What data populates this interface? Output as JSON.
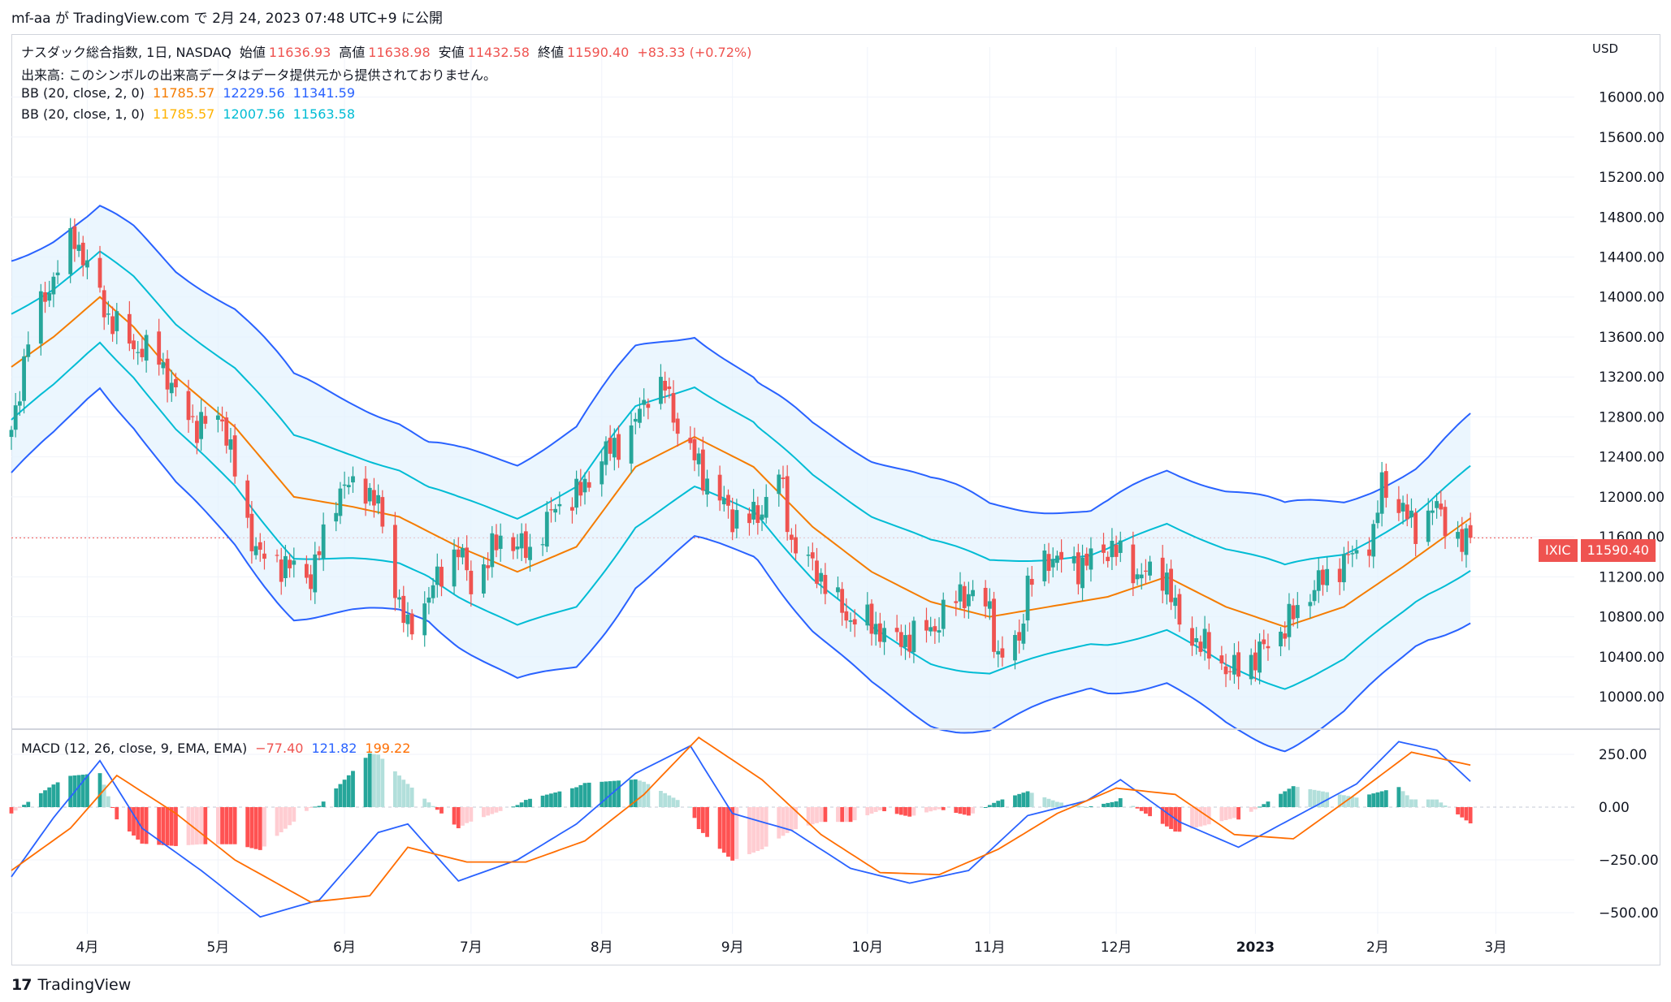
{
  "header": {
    "publish_text": "mf-aa が TradingView.com で 2月 24, 2023 07:48 UTC+9 に公開"
  },
  "legend": {
    "symbol_line": {
      "name": "ナスダック総合指数, 1日, NASDAQ",
      "open_label": "始値",
      "open": "11636.93",
      "high_label": "高値",
      "high": "11638.98",
      "low_label": "安値",
      "low": "11432.58",
      "close_label": "終値",
      "close": "11590.40",
      "change": "+83.33 (+0.72%)"
    },
    "volume_line": "出来高: このシンボルの出来高データはデータ提供元から提供されておりません。",
    "bb1": {
      "label": "BB (20, close, 2, 0)",
      "basis": "11785.57",
      "upper": "12229.56",
      "lower": "11341.59"
    },
    "bb2": {
      "label": "BB (20, close, 1, 0)",
      "basis": "11785.57",
      "upper": "12007.56",
      "lower": "11563.58"
    },
    "macd": {
      "label": "MACD (12, 26, close, 9, EMA, EMA)",
      "hist": "−77.40",
      "macd": "121.82",
      "signal": "199.22"
    }
  },
  "currency": "USD",
  "price_tag": {
    "symbol": "IXIC",
    "value": "11590.40"
  },
  "colors": {
    "up": "#26a69a",
    "down": "#ef5350",
    "bb_outer": "#2962ff",
    "bb_inner": "#00bcd4",
    "basis": "#f57c00",
    "basis_inner": "#ffb300",
    "band_fill": "#e3f2fd",
    "macd_line": "#2962ff",
    "signal_line": "#ff6d00",
    "hist_up_strong": "#26a69a",
    "hist_up_weak": "#b2dfdb",
    "hist_down_strong": "#ff5252",
    "hist_down_weak": "#ffcdd2"
  },
  "footer": {
    "brand": "TradingView"
  },
  "chart_data": [
    {
      "type": "candlestick",
      "title": "ナスダック総合指数, 1日, NASDAQ",
      "ylim": [
        9700,
        16500
      ],
      "y_ticks": [
        10000,
        10400,
        10800,
        11200,
        11600,
        12000,
        12400,
        12800,
        13200,
        13600,
        14000,
        14400,
        14800,
        15200,
        15600,
        16000
      ],
      "y_tick_labels": [
        "10000.00",
        "10400.00",
        "10800.00",
        "11200.00",
        "11600.00",
        "12000.00",
        "12400.00",
        "12800.00",
        "13200.00",
        "13600.00",
        "14000.00",
        "14400.00",
        "14800.00",
        "15200.00",
        "15600.00",
        "16000.00"
      ],
      "x_ticks": [
        "4月",
        "5月",
        "6月",
        "7月",
        "8月",
        "9月",
        "10月",
        "11月",
        "12月",
        "2023",
        "2月",
        "3月"
      ],
      "close_path": [
        [
          "2022-03-14",
          12600
        ],
        [
          "2022-03-18",
          13600
        ],
        [
          "2022-03-24",
          14200
        ],
        [
          "2022-03-29",
          14600
        ],
        [
          "2022-04-01",
          14300
        ],
        [
          "2022-04-06",
          13800
        ],
        [
          "2022-04-12",
          13500
        ],
        [
          "2022-04-18",
          13400
        ],
        [
          "2022-04-22",
          13000
        ],
        [
          "2022-04-27",
          12700
        ],
        [
          "2022-05-03",
          12800
        ],
        [
          "2022-05-09",
          11700
        ],
        [
          "2022-05-12",
          11400
        ],
        [
          "2022-05-19",
          11300
        ],
        [
          "2022-05-24",
          11200
        ],
        [
          "2022-05-31",
          12100
        ],
        [
          "2022-06-06",
          12100
        ],
        [
          "2022-06-09",
          11900
        ],
        [
          "2022-06-13",
          11100
        ],
        [
          "2022-06-16",
          10650
        ],
        [
          "2022-06-22",
          11100
        ],
        [
          "2022-06-28",
          11500
        ],
        [
          "2022-07-01",
          11100
        ],
        [
          "2022-07-08",
          11600
        ],
        [
          "2022-07-15",
          11450
        ],
        [
          "2022-07-21",
          11900
        ],
        [
          "2022-07-27",
          12050
        ],
        [
          "2022-08-01",
          12400
        ],
        [
          "2022-08-08",
          12650
        ],
        [
          "2022-08-12",
          13050
        ],
        [
          "2022-08-16",
          13100
        ],
        [
          "2022-08-19",
          12700
        ],
        [
          "2022-08-26",
          12150
        ],
        [
          "2022-09-01",
          11800
        ],
        [
          "2022-09-07",
          11800
        ],
        [
          "2022-09-12",
          12250
        ],
        [
          "2022-09-15",
          11550
        ],
        [
          "2022-09-22",
          11200
        ],
        [
          "2022-09-28",
          10800
        ],
        [
          "2022-10-03",
          10750
        ],
        [
          "2022-10-10",
          10550
        ],
        [
          "2022-10-13",
          10600
        ],
        [
          "2022-10-19",
          10700
        ],
        [
          "2022-10-25",
          11050
        ],
        [
          "2022-11-01",
          10900
        ],
        [
          "2022-11-03",
          10350
        ],
        [
          "2022-11-08",
          10600
        ],
        [
          "2022-11-10",
          11100
        ],
        [
          "2022-11-15",
          11400
        ],
        [
          "2022-11-22",
          11300
        ],
        [
          "2022-11-30",
          11500
        ],
        [
          "2022-12-05",
          11250
        ],
        [
          "2022-12-13",
          11200
        ],
        [
          "2022-12-16",
          10700
        ],
        [
          "2022-12-22",
          10500
        ],
        [
          "2022-12-28",
          10250
        ],
        [
          "2023-01-03",
          10400
        ],
        [
          "2023-01-09",
          10650
        ],
        [
          "2023-01-17",
          11100
        ],
        [
          "2023-01-24",
          11350
        ],
        [
          "2023-01-31",
          11600
        ],
        [
          "2023-02-02",
          12150
        ],
        [
          "2023-02-06",
          11900
        ],
        [
          "2023-02-10",
          11700
        ],
        [
          "2023-02-15",
          11900
        ],
        [
          "2023-02-21",
          11500
        ],
        [
          "2023-02-23",
          11590
        ]
      ],
      "bb_basis_path": [
        [
          "2022-03-14",
          13300
        ],
        [
          "2022-03-24",
          13600
        ],
        [
          "2022-04-04",
          14000
        ],
        [
          "2022-04-12",
          13700
        ],
        [
          "2022-04-22",
          13200
        ],
        [
          "2022-05-06",
          12700
        ],
        [
          "2022-05-20",
          12000
        ],
        [
          "2022-06-03",
          11900
        ],
        [
          "2022-06-14",
          11800
        ],
        [
          "2022-06-28",
          11500
        ],
        [
          "2022-07-12",
          11250
        ],
        [
          "2022-07-26",
          11500
        ],
        [
          "2022-08-09",
          12300
        ],
        [
          "2022-08-23",
          12600
        ],
        [
          "2022-09-06",
          12300
        ],
        [
          "2022-09-20",
          11700
        ],
        [
          "2022-10-04",
          11250
        ],
        [
          "2022-10-18",
          10950
        ],
        [
          "2022-11-01",
          10800
        ],
        [
          "2022-11-15",
          10900
        ],
        [
          "2022-11-29",
          11000
        ],
        [
          "2022-12-13",
          11200
        ],
        [
          "2022-12-27",
          10900
        ],
        [
          "2023-01-10",
          10700
        ],
        [
          "2023-01-24",
          10900
        ],
        [
          "2023-02-07",
          11300
        ],
        [
          "2023-02-23",
          11786
        ]
      ],
      "bb_upper2": "12229.56",
      "bb_lower2": "11341.59",
      "bb_upper1": "12007.56",
      "bb_lower1": "11563.58",
      "last_close": 11590.4
    },
    {
      "type": "macd",
      "ylim": [
        -600,
        350
      ],
      "y_ticks": [
        250,
        0,
        -250,
        -500
      ],
      "y_tick_labels": [
        "250.00",
        "0.00",
        "−250.00",
        "−500.00"
      ],
      "macd_path": [
        [
          "2022-03-14",
          -330
        ],
        [
          "2022-03-24",
          -50
        ],
        [
          "2022-04-04",
          220
        ],
        [
          "2022-04-14",
          -100
        ],
        [
          "2022-04-28",
          -300
        ],
        [
          "2022-05-12",
          -520
        ],
        [
          "2022-05-26",
          -440
        ],
        [
          "2022-06-09",
          -120
        ],
        [
          "2022-06-16",
          -80
        ],
        [
          "2022-06-28",
          -350
        ],
        [
          "2022-07-12",
          -250
        ],
        [
          "2022-07-26",
          -80
        ],
        [
          "2022-08-09",
          160
        ],
        [
          "2022-08-22",
          290
        ],
        [
          "2022-09-01",
          -30
        ],
        [
          "2022-09-15",
          -110
        ],
        [
          "2022-09-29",
          -290
        ],
        [
          "2022-10-13",
          -360
        ],
        [
          "2022-10-27",
          -300
        ],
        [
          "2022-11-10",
          -40
        ],
        [
          "2022-11-24",
          30
        ],
        [
          "2022-12-02",
          130
        ],
        [
          "2022-12-16",
          -70
        ],
        [
          "2022-12-30",
          -190
        ],
        [
          "2023-01-13",
          -40
        ],
        [
          "2023-01-27",
          110
        ],
        [
          "2023-02-06",
          310
        ],
        [
          "2023-02-15",
          270
        ],
        [
          "2023-02-23",
          122
        ]
      ],
      "signal_path": [
        [
          "2022-03-14",
          -300
        ],
        [
          "2022-03-28",
          -100
        ],
        [
          "2022-04-08",
          150
        ],
        [
          "2022-04-22",
          -30
        ],
        [
          "2022-05-06",
          -250
        ],
        [
          "2022-05-24",
          -450
        ],
        [
          "2022-06-07",
          -420
        ],
        [
          "2022-06-16",
          -190
        ],
        [
          "2022-06-30",
          -260
        ],
        [
          "2022-07-14",
          -260
        ],
        [
          "2022-07-28",
          -160
        ],
        [
          "2022-08-11",
          60
        ],
        [
          "2022-08-24",
          330
        ],
        [
          "2022-09-08",
          130
        ],
        [
          "2022-09-22",
          -130
        ],
        [
          "2022-10-06",
          -310
        ],
        [
          "2022-10-20",
          -320
        ],
        [
          "2022-11-03",
          -200
        ],
        [
          "2022-11-17",
          -30
        ],
        [
          "2022-12-01",
          90
        ],
        [
          "2022-12-15",
          60
        ],
        [
          "2022-12-29",
          -130
        ],
        [
          "2023-01-12",
          -150
        ],
        [
          "2023-01-26",
          50
        ],
        [
          "2023-02-09",
          260
        ],
        [
          "2023-02-23",
          199
        ]
      ],
      "last_hist": -77.4,
      "last_macd": 121.82,
      "last_signal": 199.22
    }
  ]
}
